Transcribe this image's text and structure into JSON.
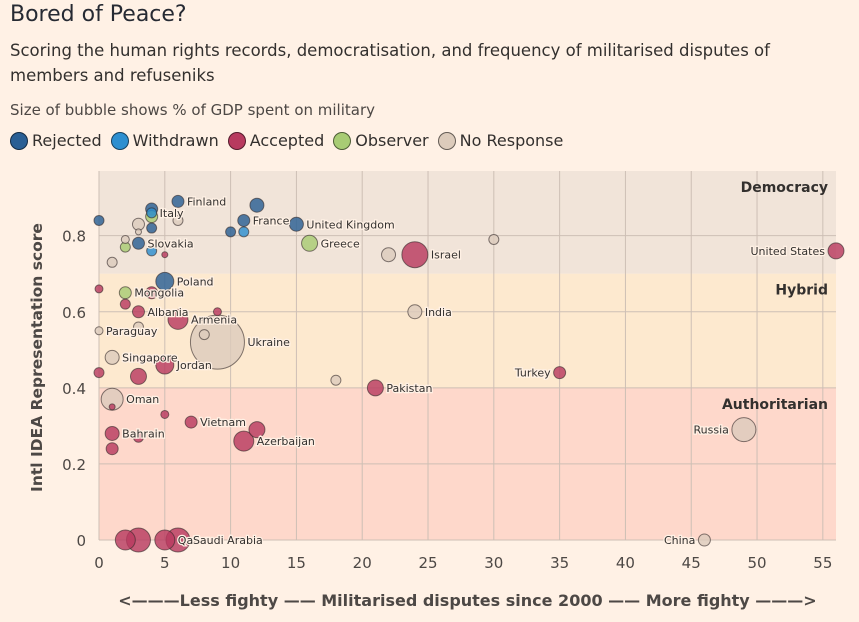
{
  "title": "Bored of Peace?",
  "subtitle": "Scoring the human rights records, democratisation, and frequency of militarised disputes of members and refuseniks",
  "size_note": "Size of bubble shows % of GDP spent on military",
  "legend": [
    {
      "label": "Rejected",
      "color": "#2a5f94"
    },
    {
      "label": "Withdrawn",
      "color": "#2d8fd0"
    },
    {
      "label": "Accepted",
      "color": "#b83a5f"
    },
    {
      "label": "Observer",
      "color": "#a8cc74"
    },
    {
      "label": "No Response",
      "color": "#dccbbb"
    }
  ],
  "chart_data": {
    "type": "scatter",
    "bubble": true,
    "title": "Bored of Peace?",
    "xlabel": "<———Less fighty —— Militarised disputes since 2000 —— More fighty ———>",
    "ylabel": "Intl IDEA Representation score",
    "xlim": [
      0,
      56
    ],
    "ylim": [
      0,
      0.97
    ],
    "x_ticks": [
      0,
      5,
      10,
      15,
      20,
      25,
      30,
      35,
      40,
      45,
      50,
      55
    ],
    "y_ticks": [
      0,
      0.2,
      0.4,
      0.6,
      0.8
    ],
    "y_tick_labels": [
      "0",
      "0.2",
      "0.4",
      "0.6",
      "0.8"
    ],
    "grid": true,
    "bands": [
      {
        "label": "Democracy",
        "from": 0.7,
        "to": 0.97,
        "color": "#f1e4d9"
      },
      {
        "label": "Hybrid",
        "from": 0.4,
        "to": 0.7,
        "color": "#fde9cf"
      },
      {
        "label": "Authoritarian",
        "from": 0,
        "to": 0.4,
        "color": "#fed8cb"
      }
    ],
    "points": [
      {
        "label": "",
        "x": 0,
        "y": 0.84,
        "r": 5,
        "status": "Rejected"
      },
      {
        "label": "",
        "x": 2,
        "y": 0.79,
        "r": 4,
        "status": "No Response"
      },
      {
        "label": "",
        "x": 3,
        "y": 0.83,
        "r": 6,
        "status": "No Response"
      },
      {
        "label": "",
        "x": 3,
        "y": 0.81,
        "r": 3,
        "status": "No Response"
      },
      {
        "label": "",
        "x": 4,
        "y": 0.87,
        "r": 6,
        "status": "Rejected"
      },
      {
        "label": "",
        "x": 4,
        "y": 0.85,
        "r": 6,
        "status": "Observer"
      },
      {
        "label": "Italy",
        "x": 4,
        "y": 0.86,
        "r": 5,
        "status": "Withdrawn"
      },
      {
        "label": "",
        "x": 4,
        "y": 0.82,
        "r": 5,
        "status": "Rejected"
      },
      {
        "label": "Finland",
        "x": 6,
        "y": 0.89,
        "r": 6,
        "status": "Rejected"
      },
      {
        "label": "",
        "x": 6,
        "y": 0.84,
        "r": 5,
        "status": "No Response"
      },
      {
        "label": "Slovakia",
        "x": 3,
        "y": 0.78,
        "r": 6,
        "status": "Rejected"
      },
      {
        "label": "",
        "x": 2,
        "y": 0.77,
        "r": 5,
        "status": "Observer"
      },
      {
        "label": "",
        "x": 4,
        "y": 0.76,
        "r": 5,
        "status": "Withdrawn"
      },
      {
        "label": "",
        "x": 1,
        "y": 0.73,
        "r": 5,
        "status": "No Response"
      },
      {
        "label": "",
        "x": 5,
        "y": 0.75,
        "r": 3,
        "status": "Accepted"
      },
      {
        "label": "",
        "x": 10,
        "y": 0.81,
        "r": 5,
        "status": "Rejected"
      },
      {
        "label": "",
        "x": 11,
        "y": 0.81,
        "r": 5,
        "status": "Withdrawn"
      },
      {
        "label": "France",
        "x": 11,
        "y": 0.84,
        "r": 6,
        "status": "Rejected"
      },
      {
        "label": "",
        "x": 12,
        "y": 0.88,
        "r": 7,
        "status": "Rejected"
      },
      {
        "label": "United Kingdom",
        "x": 15,
        "y": 0.83,
        "r": 7,
        "status": "Rejected"
      },
      {
        "label": "Greece",
        "x": 16,
        "y": 0.78,
        "r": 8,
        "status": "Observer"
      },
      {
        "label": "",
        "x": 22,
        "y": 0.75,
        "r": 7,
        "status": "No Response"
      },
      {
        "label": "Israel",
        "x": 24,
        "y": 0.75,
        "r": 13,
        "status": "Accepted"
      },
      {
        "label": "",
        "x": 30,
        "y": 0.79,
        "r": 5,
        "status": "No Response"
      },
      {
        "label": "United States",
        "x": 56,
        "y": 0.76,
        "r": 8,
        "status": "Accepted"
      },
      {
        "label": "Poland",
        "x": 5,
        "y": 0.68,
        "r": 9,
        "status": "Rejected"
      },
      {
        "label": "",
        "x": 0,
        "y": 0.66,
        "r": 4,
        "status": "Accepted"
      },
      {
        "label": "Mongolia",
        "x": 2,
        "y": 0.65,
        "r": 6,
        "status": "Observer"
      },
      {
        "label": "",
        "x": 4,
        "y": 0.65,
        "r": 6,
        "status": "Accepted"
      },
      {
        "label": "",
        "x": 2,
        "y": 0.62,
        "r": 5,
        "status": "Accepted"
      },
      {
        "label": "Albania",
        "x": 3,
        "y": 0.6,
        "r": 6,
        "status": "Accepted"
      },
      {
        "label": "Armenia",
        "x": 6,
        "y": 0.58,
        "r": 10,
        "status": "Accepted"
      },
      {
        "label": "",
        "x": 9,
        "y": 0.6,
        "r": 4,
        "status": "Accepted"
      },
      {
        "label": "Paraguay",
        "x": 0,
        "y": 0.55,
        "r": 4,
        "status": "No Response"
      },
      {
        "label": "",
        "x": 3,
        "y": 0.56,
        "r": 5,
        "status": "No Response"
      },
      {
        "label": "",
        "x": 8,
        "y": 0.54,
        "r": 5,
        "status": "No Response"
      },
      {
        "label": "Ukraine",
        "x": 9,
        "y": 0.52,
        "r": 27,
        "status": "No Response"
      },
      {
        "label": "India",
        "x": 24,
        "y": 0.6,
        "r": 7,
        "status": "No Response"
      },
      {
        "label": "Singapore",
        "x": 1,
        "y": 0.48,
        "r": 7,
        "status": "No Response"
      },
      {
        "label": "Jordan",
        "x": 5,
        "y": 0.46,
        "r": 9,
        "status": "Accepted"
      },
      {
        "label": "",
        "x": 3,
        "y": 0.43,
        "r": 8,
        "status": "Accepted"
      },
      {
        "label": "",
        "x": 0,
        "y": 0.44,
        "r": 5,
        "status": "Accepted"
      },
      {
        "label": "",
        "x": 18,
        "y": 0.42,
        "r": 5,
        "status": "No Response"
      },
      {
        "label": "Pakistan",
        "x": 21,
        "y": 0.4,
        "r": 8,
        "status": "Accepted"
      },
      {
        "label": "Turkey",
        "x": 35,
        "y": 0.44,
        "r": 6,
        "status": "Accepted"
      },
      {
        "label": "Oman",
        "x": 1,
        "y": 0.37,
        "r": 11,
        "status": "No Response"
      },
      {
        "label": "",
        "x": 1,
        "y": 0.35,
        "r": 3,
        "status": "Accepted"
      },
      {
        "label": "",
        "x": 5,
        "y": 0.33,
        "r": 4,
        "status": "Accepted"
      },
      {
        "label": "Vietnam",
        "x": 7,
        "y": 0.31,
        "r": 6,
        "status": "Accepted"
      },
      {
        "label": "Bahrain",
        "x": 1,
        "y": 0.28,
        "r": 7,
        "status": "Accepted"
      },
      {
        "label": "",
        "x": 3,
        "y": 0.27,
        "r": 5,
        "status": "Accepted"
      },
      {
        "label": "",
        "x": 1,
        "y": 0.24,
        "r": 6,
        "status": "Accepted"
      },
      {
        "label": "",
        "x": 12,
        "y": 0.29,
        "r": 8,
        "status": "Accepted"
      },
      {
        "label": "Azerbaijan",
        "x": 11,
        "y": 0.26,
        "r": 10,
        "status": "Accepted"
      },
      {
        "label": "Russia",
        "x": 49,
        "y": 0.29,
        "r": 12,
        "status": "No Response"
      },
      {
        "label": "",
        "x": 2,
        "y": 0,
        "r": 10,
        "status": "Accepted"
      },
      {
        "label": "",
        "x": 3,
        "y": 0,
        "r": 12,
        "status": "Accepted"
      },
      {
        "label": "Qatar",
        "x": 5,
        "y": 0,
        "r": 10,
        "status": "Accepted"
      },
      {
        "label": "Saudi Arabia",
        "x": 6,
        "y": 0,
        "r": 12,
        "status": "Accepted"
      },
      {
        "label": "China",
        "x": 46,
        "y": 0,
        "r": 6,
        "status": "No Response"
      }
    ]
  }
}
